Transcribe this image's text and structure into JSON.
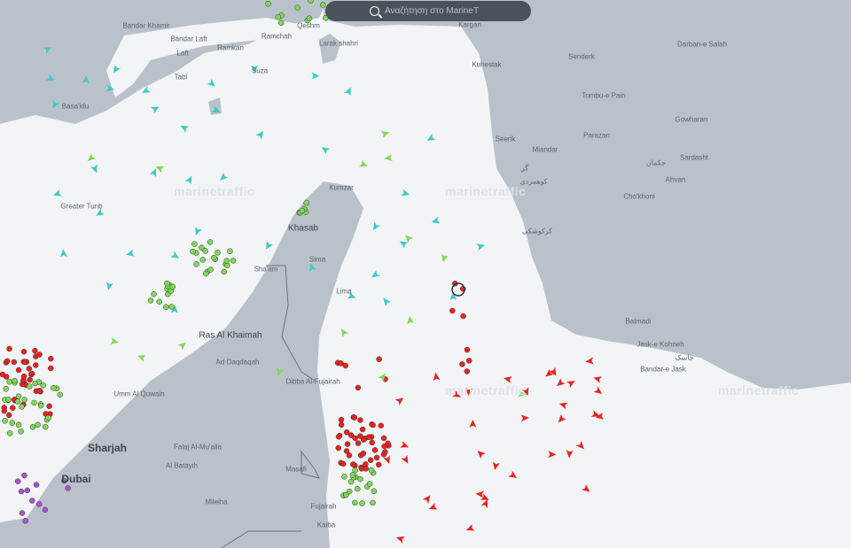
{
  "search": {
    "placeholder": "Αναζήτηση στο MarineT",
    "icon": "search-icon"
  },
  "watermark": "marinetraffic",
  "colors": {
    "sea": "#f3f4f6",
    "land": "#b9c2ca",
    "cargo": "#7ed957",
    "tanker": "#e8231f",
    "passenger": "#3ec9c9",
    "other": "#b04fd6"
  },
  "places": [
    {
      "name": "Bandar Khamir",
      "k": "s"
    },
    {
      "name": "Bandar Laft",
      "k": "s"
    },
    {
      "name": "Ramkan",
      "k": "s"
    },
    {
      "name": "Ramchah",
      "k": "s"
    },
    {
      "name": "Qeshm",
      "k": "s"
    },
    {
      "name": "Laft",
      "k": "s"
    },
    {
      "name": "Tabl",
      "k": "s"
    },
    {
      "name": "Suza",
      "k": "s"
    },
    {
      "name": "Larak shahri",
      "k": "s"
    },
    {
      "name": "Kargan",
      "k": "s"
    },
    {
      "name": "Kuhestak",
      "k": "s"
    },
    {
      "name": "Senderk",
      "k": "s"
    },
    {
      "name": "Darban-e Salah",
      "k": "s"
    },
    {
      "name": "Tombu-e Pain",
      "k": "s"
    },
    {
      "name": "Gowharan",
      "k": "s"
    },
    {
      "name": "Parazan",
      "k": "s"
    },
    {
      "name": "Sardasht",
      "k": "s"
    },
    {
      "name": "Seerik",
      "k": "s"
    },
    {
      "name": "Miandar",
      "k": "s"
    },
    {
      "name": "گر",
      "k": "s"
    },
    {
      "name": "حکمان",
      "k": "s"
    },
    {
      "name": "Ahvan",
      "k": "s"
    },
    {
      "name": "کوهمردی",
      "k": "s"
    },
    {
      "name": "Cho'khoni",
      "k": "s"
    },
    {
      "name": "کرکوشکی",
      "k": "s"
    },
    {
      "name": "Basa'idu",
      "k": "s"
    },
    {
      "name": "Greater Tunb",
      "k": "s"
    },
    {
      "name": "Kumzar",
      "k": "s"
    },
    {
      "name": "Khasab",
      "k": "m"
    },
    {
      "name": "Sima",
      "k": "s"
    },
    {
      "name": "Sha'am",
      "k": "s"
    },
    {
      "name": "Lima",
      "k": "s"
    },
    {
      "name": "Ras Al Khaimah",
      "k": "m"
    },
    {
      "name": "Ad Daqdaqah",
      "k": "s"
    },
    {
      "name": "Umm Al Quwain",
      "k": "s"
    },
    {
      "name": "Dibba Al-Fujairah",
      "k": "s"
    },
    {
      "name": "Sharjah",
      "k": "b"
    },
    {
      "name": "Falaj Al-Mu'alla",
      "k": "s"
    },
    {
      "name": "Al Batayih",
      "k": "s"
    },
    {
      "name": "Dubai",
      "k": "b"
    },
    {
      "name": "Masafi",
      "k": "s"
    },
    {
      "name": "Mileiha",
      "k": "s"
    },
    {
      "name": "Fujairah",
      "k": "s"
    },
    {
      "name": "Kalba",
      "k": "s"
    },
    {
      "name": "Balmadi",
      "k": "s"
    },
    {
      "name": "Jask-e Kohneh",
      "k": "s"
    },
    {
      "name": "Bandar-e Jask",
      "k": "s"
    },
    {
      "name": "جاسک",
      "k": "s"
    }
  ]
}
